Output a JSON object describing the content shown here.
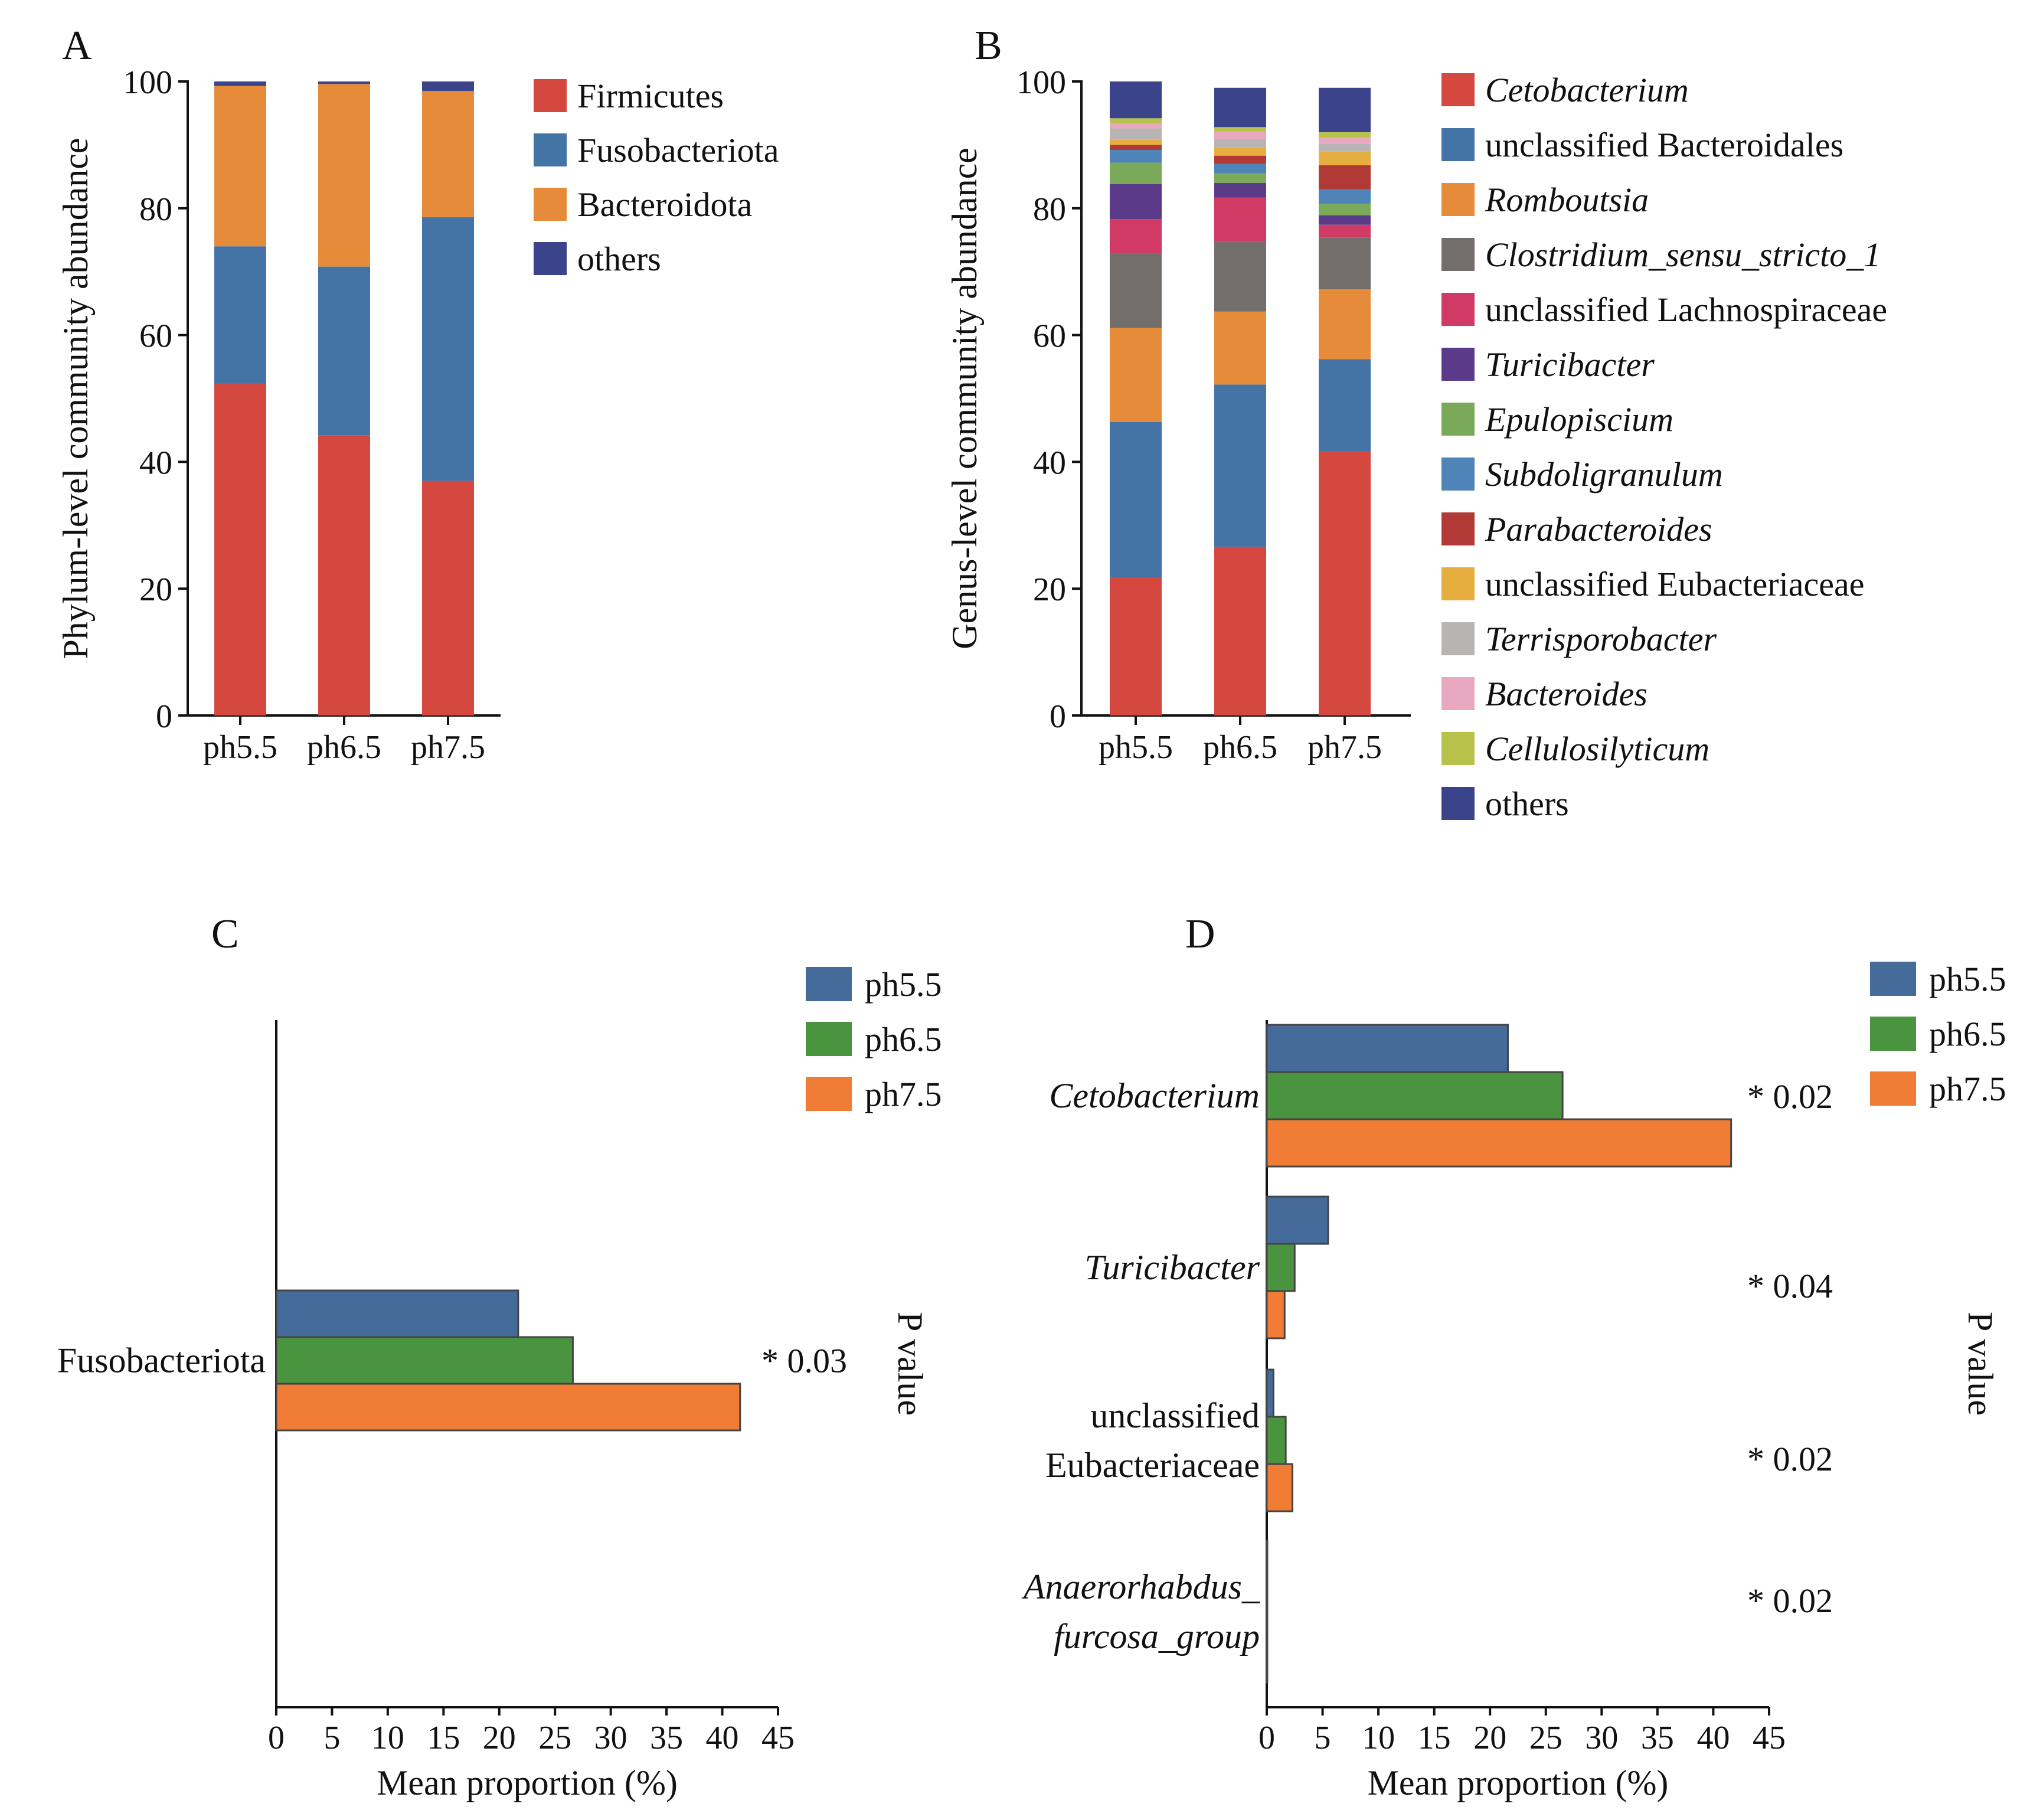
{
  "colors": {
    "red": "#d44840",
    "blue": "#4474a6",
    "orange": "#e68b3a",
    "grey": "#736e6b",
    "crimson": "#d03a64",
    "purple": "#5c3a8a",
    "green_light": "#7aa95a",
    "steel": "#4f84b8",
    "darkred": "#b23a36",
    "amber": "#e6ae3e",
    "silver": "#b8b4b4",
    "pink": "#e8a8c0",
    "olive": "#b6c24a",
    "navy": "#3b438a",
    "bar_blue": "#456b9a",
    "bar_green": "#4a9440",
    "bar_orange": "#f07c36"
  },
  "chart_data": [
    {
      "id": "A",
      "panel_label": "A",
      "type": "bar",
      "stacked": true,
      "ylabel": "Phylum-level community abundance",
      "ylim": [
        0,
        100
      ],
      "yticks": [
        "0",
        "20",
        "40",
        "60",
        "80",
        "100"
      ],
      "categories": [
        "ph5.5",
        "ph6.5",
        "ph7.5"
      ],
      "series": [
        {
          "name": "Firmicutes",
          "color": "red",
          "values": [
            52.3,
            44.2,
            37.0
          ]
        },
        {
          "name": "Fusobacteriota",
          "color": "blue",
          "values": [
            21.7,
            26.6,
            41.6
          ]
        },
        {
          "name": "Bacteroidota",
          "color": "orange",
          "values": [
            25.3,
            28.8,
            19.9
          ]
        },
        {
          "name": "others",
          "color": "navy",
          "values": [
            0.7,
            0.4,
            1.5
          ]
        }
      ]
    },
    {
      "id": "B",
      "panel_label": "B",
      "type": "bar",
      "stacked": true,
      "ylabel": "Genus-level community abundance",
      "ylim": [
        0,
        100
      ],
      "yticks": [
        "0",
        "20",
        "40",
        "60",
        "80",
        "100"
      ],
      "categories": [
        "ph5.5",
        "ph6.5",
        "ph7.5"
      ],
      "series": [
        {
          "name": "Cetobacterium",
          "italic": true,
          "color": "red",
          "values": [
            21.7,
            26.6,
            41.6
          ]
        },
        {
          "name": "unclassified Bacteroidales",
          "italic": false,
          "color": "blue",
          "values": [
            24.6,
            25.6,
            14.6
          ]
        },
        {
          "name": "Romboutsia",
          "italic": true,
          "color": "orange",
          "values": [
            14.8,
            11.5,
            11.0
          ]
        },
        {
          "name": "Clostridium_sensu_stricto_1",
          "italic": true,
          "color": "grey",
          "values": [
            11.8,
            11.0,
            8.2
          ]
        },
        {
          "name": "unclassified Lachnospiraceae",
          "italic": false,
          "color": "crimson",
          "values": [
            5.4,
            7.0,
            2.0
          ]
        },
        {
          "name": "Turicibacter",
          "italic": true,
          "color": "purple",
          "values": [
            5.5,
            2.3,
            1.5
          ]
        },
        {
          "name": "Epulopiscium",
          "italic": true,
          "color": "green_light",
          "values": [
            3.4,
            1.5,
            1.8
          ]
        },
        {
          "name": "Subdoligranulum",
          "italic": true,
          "color": "steel",
          "values": [
            2.0,
            1.5,
            2.3
          ]
        },
        {
          "name": "Parabacteroides",
          "italic": true,
          "color": "darkred",
          "values": [
            0.8,
            1.3,
            3.8
          ]
        },
        {
          "name": "unclassified Eubacteriaceae",
          "italic": false,
          "color": "amber",
          "values": [
            0.8,
            1.3,
            2.2
          ]
        },
        {
          "name": "Terrisporobacter",
          "italic": true,
          "color": "silver",
          "values": [
            1.8,
            1.3,
            1.2
          ]
        },
        {
          "name": "Bacteroides",
          "italic": true,
          "color": "pink",
          "values": [
            0.8,
            1.2,
            1.0
          ]
        },
        {
          "name": "Cellulosilyticum",
          "italic": true,
          "color": "olive",
          "values": [
            0.8,
            0.7,
            0.8
          ]
        },
        {
          "name": "others",
          "italic": false,
          "color": "navy",
          "values": [
            5.8,
            6.2,
            7.0
          ]
        }
      ]
    },
    {
      "id": "C",
      "panel_label": "C",
      "type": "bar",
      "orientation": "horizontal",
      "xlabel": "Mean proportion (%)",
      "xlim": [
        0,
        45
      ],
      "xticks": [
        "0",
        "5",
        "10",
        "15",
        "20",
        "25",
        "30",
        "35",
        "40",
        "45"
      ],
      "side_label": "P value",
      "legend": [
        {
          "name": "ph5.5",
          "color": "bar_blue"
        },
        {
          "name": "ph6.5",
          "color": "bar_green"
        },
        {
          "name": "ph7.5",
          "color": "bar_orange"
        }
      ],
      "categories": [
        {
          "lines": [
            "Fusobacteriota"
          ],
          "italic": false,
          "values": [
            21.7,
            26.6,
            41.6
          ],
          "pvalue": "* 0.03"
        }
      ]
    },
    {
      "id": "D",
      "panel_label": "D",
      "type": "bar",
      "orientation": "horizontal",
      "xlabel": "Mean proportion (%)",
      "xlim": [
        0,
        45
      ],
      "xticks": [
        "0",
        "5",
        "10",
        "15",
        "20",
        "25",
        "30",
        "35",
        "40",
        "45"
      ],
      "side_label": "P value",
      "legend": [
        {
          "name": "ph5.5",
          "color": "bar_blue"
        },
        {
          "name": "ph6.5",
          "color": "bar_green"
        },
        {
          "name": "ph7.5",
          "color": "bar_orange"
        }
      ],
      "categories": [
        {
          "lines": [
            "Cetobacterium"
          ],
          "italic": true,
          "values": [
            21.6,
            26.5,
            41.6
          ],
          "pvalue": "* 0.02"
        },
        {
          "lines": [
            "Turicibacter"
          ],
          "italic": true,
          "values": [
            5.5,
            2.5,
            1.6
          ],
          "pvalue": "* 0.04"
        },
        {
          "lines": [
            "unclassified",
            "Eubacteriaceae"
          ],
          "italic": false,
          "values": [
            0.6,
            1.7,
            2.3
          ],
          "pvalue": "* 0.02"
        },
        {
          "lines": [
            "Anaerorhabdus_",
            "furcosa_group"
          ],
          "italic": true,
          "values": [
            0.05,
            0.05,
            0.05
          ],
          "pvalue": "* 0.02"
        }
      ]
    }
  ]
}
